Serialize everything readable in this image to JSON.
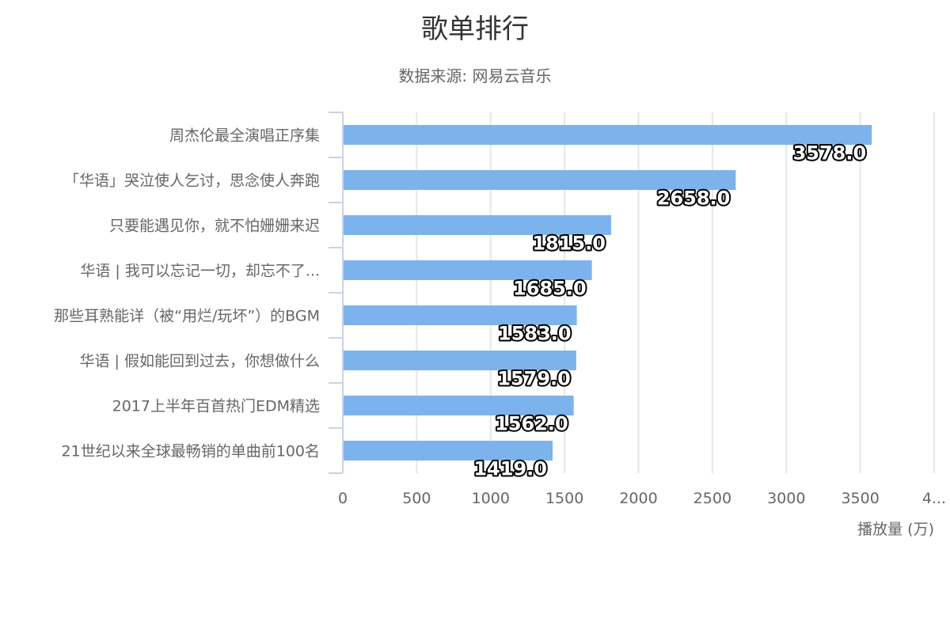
{
  "chart_data": {
    "type": "bar",
    "orientation": "horizontal",
    "title": "歌单排行",
    "subtitle": "数据来源: 网易云音乐",
    "categories": [
      "周杰伦最全演唱正序集",
      "「华语」哭泣使人乞讨，思念使人奔跑",
      "只要能遇见你，就不怕姗姗来迟",
      "华语 | 我可以忘记一切，却忘不了...",
      "那些耳熟能详（被“用烂/玩坏”）的BGM",
      "华语 | 假如能回到过去，你想做什么",
      "2017上半年百首热门EDM精选",
      "21世纪以来全球最畅销的单曲前100名"
    ],
    "values": [
      3578,
      2658,
      1815,
      1685,
      1583,
      1579,
      1562,
      1419
    ],
    "data_labels": [
      "3578.0",
      "2658.0",
      "1815.0",
      "1685.0",
      "1583.0",
      "1579.0",
      "1562.0",
      "1419.0"
    ],
    "x_ticks": [
      "0",
      "500",
      "1000",
      "1500",
      "2000",
      "2500",
      "3000",
      "3500",
      "4..."
    ],
    "xlabel": "播放量 (万)",
    "ylabel": "",
    "xlim": [
      0,
      4000
    ],
    "grid": true,
    "legend": "none",
    "colors": {
      "bar": "#7cb3ec",
      "grid": "#e6e6e6",
      "axis": "#c9d4e3",
      "text": "#666666",
      "title": "#333333"
    }
  }
}
